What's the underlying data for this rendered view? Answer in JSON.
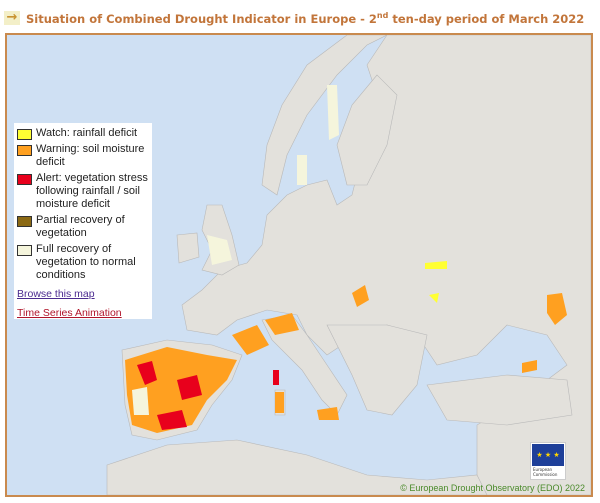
{
  "title": {
    "prefix": "Situation of Combined Drought Indicator in Europe - 2",
    "sup": "nd",
    "suffix": " ten-day period of March 2022",
    "icon": "arrow-right-icon"
  },
  "legend": {
    "items": [
      {
        "label": "Watch: rainfall deficit",
        "color": "#ffff33"
      },
      {
        "label": "Warning: soil moisture deficit",
        "color": "#ffa020"
      },
      {
        "label": "Alert: vegetation stress following rainfall / soil moisture deficit",
        "color": "#e8001c"
      },
      {
        "label": "Partial recovery of vegetation",
        "color": "#8b6914"
      },
      {
        "label": "Full recovery of vegetation to normal conditions",
        "color": "#f5f5dc"
      }
    ],
    "browse_link": "Browse this map",
    "browse_color": "#4b2a8f",
    "animation_link": "Time Series Animation",
    "animation_color": "#b0142a"
  },
  "credit": "© European Drought Observatory (EDO) 2022",
  "logo_text": "European Commission",
  "colors": {
    "sea": "#cfe0f3",
    "land": "#e3e1dc",
    "frame": "#c98a4e"
  }
}
